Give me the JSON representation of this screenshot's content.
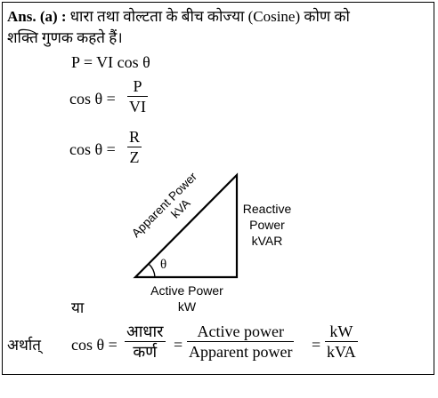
{
  "answer": {
    "prefix": "Ans. (a) :",
    "line1": "धारा तथा वोल्टता के बीच कोज्या (Cosine) कोण को",
    "line2": "शक्ति गुणक कहते हैं।"
  },
  "equations": {
    "power": "P = VI cos θ",
    "eq2_lhs": "cos θ =",
    "eq2_num": "P",
    "eq2_den": "VI",
    "eq3_lhs": "cos θ =",
    "eq3_num": "R",
    "eq3_den": "Z"
  },
  "triangle": {
    "hypotenuse_label1": "Apparent Power",
    "hypotenuse_label2": "kVA",
    "vertical_label1": "Reactive",
    "vertical_label2": "Power",
    "vertical_label3": "kVAR",
    "base_label1": "Active Power",
    "base_label2": "kW",
    "angle_label": "θ"
  },
  "ya": "या",
  "final": {
    "prefix": "अर्थात्",
    "lhs": "cos θ =",
    "frac1_num": "आधार",
    "frac1_den": "कर्ण",
    "eq1": "=",
    "frac2_num": "Active power",
    "frac2_den": "Apparent power",
    "eq2": "=",
    "frac3_num": "kW",
    "frac3_den": "kVA"
  }
}
